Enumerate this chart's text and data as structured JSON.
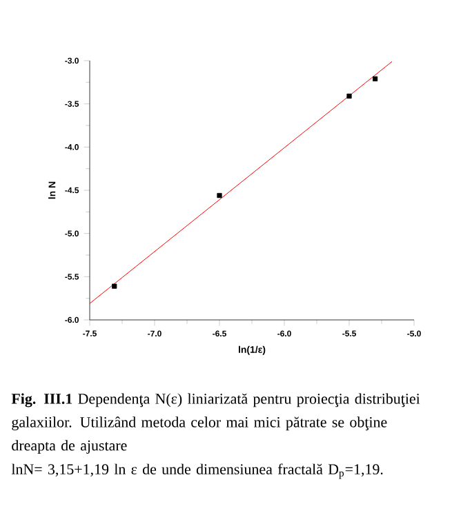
{
  "chart_data": {
    "type": "scatter",
    "xlabel": "ln(1/ε)",
    "ylabel": "ln N",
    "xlim": [
      -7.5,
      -5.0
    ],
    "ylim": [
      -6.0,
      -3.0
    ],
    "xticks": [
      {
        "value": -7.5,
        "label": "-7.5"
      },
      {
        "value": -7.0,
        "label": "-7.0"
      },
      {
        "value": -6.5,
        "label": "-6.5"
      },
      {
        "value": -6.0,
        "label": "-6.0"
      },
      {
        "value": -5.5,
        "label": "-5.5"
      },
      {
        "value": -5.0,
        "label": "-5.0"
      }
    ],
    "yticks": [
      {
        "value": -6.0,
        "label": "-6.0"
      },
      {
        "value": -5.5,
        "label": "-5.5"
      },
      {
        "value": -5.0,
        "label": "-5.0"
      },
      {
        "value": -4.5,
        "label": "-4.5"
      },
      {
        "value": -4.0,
        "label": "-4.0"
      },
      {
        "value": -3.5,
        "label": "-3.5"
      },
      {
        "value": -3.0,
        "label": "-3.0"
      }
    ],
    "series": [
      {
        "type": "scatter",
        "marker": "square",
        "color": "#000000",
        "x": [
          -7.31,
          -6.5,
          -5.5,
          -5.3
        ],
        "values": [
          -5.61,
          -4.56,
          -3.41,
          -3.21
        ]
      },
      {
        "type": "line",
        "marker": "none",
        "line_style": "solid",
        "color": "#ff0000",
        "x": [
          -7.5,
          -5.17
        ],
        "values": [
          -5.81,
          -3.01
        ]
      }
    ],
    "annotations": [
      "**Fig. III.1** Dependenţa N(ε) liniarizată pentru proiecţia distribuţiei galaxiilor. Utilizând metoda celor mai mici pătrate se obţine dreapta de ajustare",
      "lnN= 3,15+1,19 ln ε  de unde dimensiunea fractală D$_{p}$=1,19."
    ]
  }
}
